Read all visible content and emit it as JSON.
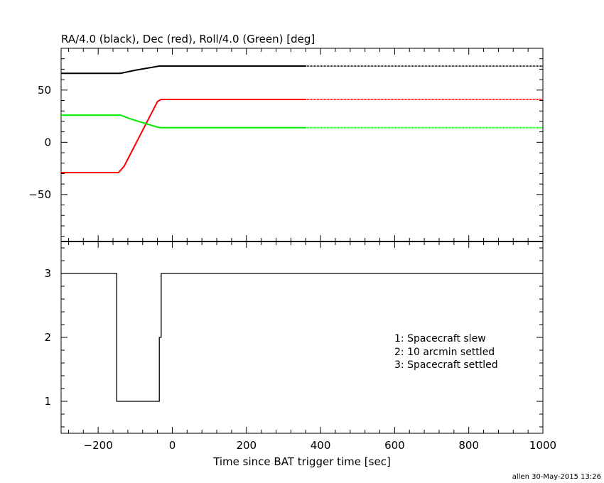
{
  "page": {
    "footer_credit": "allen 30-May-2015 13:26"
  },
  "chart_data": [
    {
      "type": "line",
      "title": "RA/4.0 (black), Dec (red), Roll/4.0 (Green) [deg]",
      "xlim": [
        -300,
        1000
      ],
      "ylim": [
        -95,
        90
      ],
      "y_ticks": [
        -50,
        0,
        50
      ],
      "grid": false,
      "series": [
        {
          "name": "RA/4.0",
          "color": "#000000",
          "solid": {
            "x": [
              -300,
              -140,
              -100,
              -35,
              360
            ],
            "y": [
              66,
              66,
              69,
              73,
              73
            ]
          },
          "dotted": {
            "x": [
              360,
              1000
            ],
            "y": [
              73,
              73
            ]
          }
        },
        {
          "name": "Dec",
          "color": "#ff0000",
          "solid": {
            "x": [
              -300,
              -145,
              -130,
              -40,
              -30,
              360
            ],
            "y": [
              -29,
              -29,
              -23,
              39,
              41,
              41
            ]
          },
          "dotted": {
            "x": [
              360,
              1000
            ],
            "y": [
              41,
              41
            ]
          }
        },
        {
          "name": "Roll/4.0",
          "color": "#00ee00",
          "solid": {
            "x": [
              -300,
              -140,
              -110,
              -40,
              -30,
              360
            ],
            "y": [
              26,
              26,
              22,
              14.5,
              14,
              14
            ]
          },
          "dotted": {
            "x": [
              360,
              1000
            ],
            "y": [
              14,
              14
            ]
          }
        }
      ]
    },
    {
      "type": "line",
      "xlabel": "Time since BAT trigger time [sec]",
      "xlim": [
        -300,
        1000
      ],
      "ylim": [
        0.5,
        3.5
      ],
      "x_ticks": [
        -200,
        0,
        200,
        400,
        600,
        800,
        1000
      ],
      "y_ticks": [
        1,
        2,
        3
      ],
      "grid": false,
      "series": [
        {
          "color": "#000000",
          "step": true,
          "x": [
            -300,
            -150,
            -150,
            -35,
            -35,
            -30,
            -30,
            1000
          ],
          "y": [
            3,
            3,
            1,
            1,
            2,
            2,
            3,
            3
          ]
        }
      ],
      "legend": {
        "placement": "right",
        "entries": [
          "1: Spacecraft slew",
          "2: 10 arcmin settled",
          "3: Spacecraft settled"
        ]
      }
    }
  ]
}
